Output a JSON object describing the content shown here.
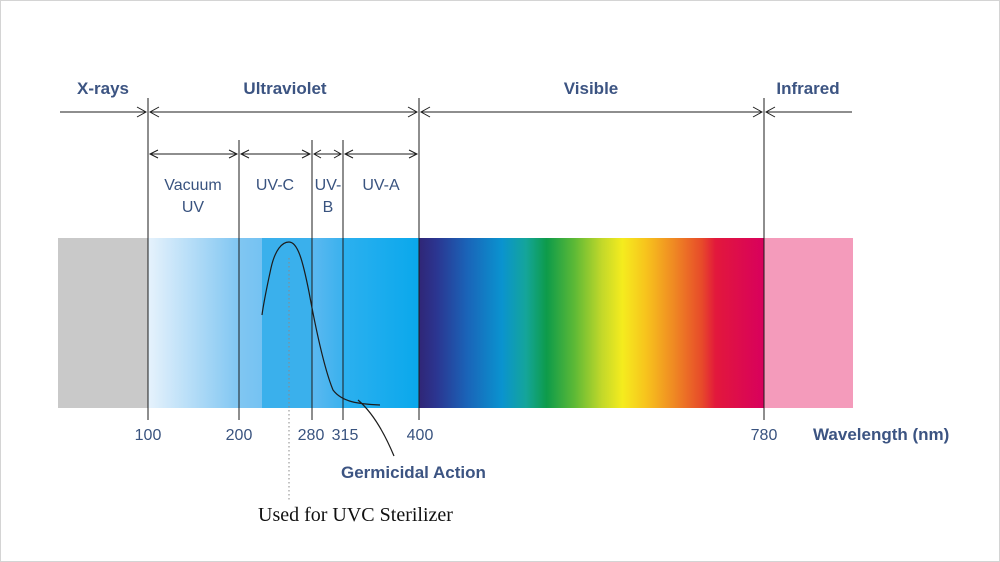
{
  "regions": [
    {
      "key": "xrays",
      "label": "X-rays",
      "color": "#c9c9c9"
    },
    {
      "key": "ultraviolet",
      "label": "Ultraviolet"
    },
    {
      "key": "visible",
      "label": "Visible"
    },
    {
      "key": "infrared",
      "label": "Infrared",
      "color": "#f49bbb"
    }
  ],
  "uv_bands": [
    {
      "key": "vacuum",
      "label_lines": [
        "Vacuum",
        "UV"
      ],
      "from": 100,
      "to": 200
    },
    {
      "key": "uvc",
      "label_lines": [
        "UV-C"
      ],
      "from": 200,
      "to": 280
    },
    {
      "key": "uvb",
      "label_lines": [
        "UV-",
        "B"
      ],
      "from": 280,
      "to": 315
    },
    {
      "key": "uva",
      "label_lines": [
        "UV-A"
      ],
      "from": 315,
      "to": 400
    }
  ],
  "ticks": [
    100,
    200,
    280,
    315,
    400,
    780
  ],
  "axis_unit_label": "Wavelength (nm)",
  "annotations": {
    "germicidal": "Germicidal Action",
    "sterilizer": "Used for UVC Sterilizer"
  },
  "colors": {
    "text": "#3c5482",
    "uvc_highlight": "#3ab0ec",
    "uva": "#12aaee",
    "line": "#1c1c1c"
  }
}
